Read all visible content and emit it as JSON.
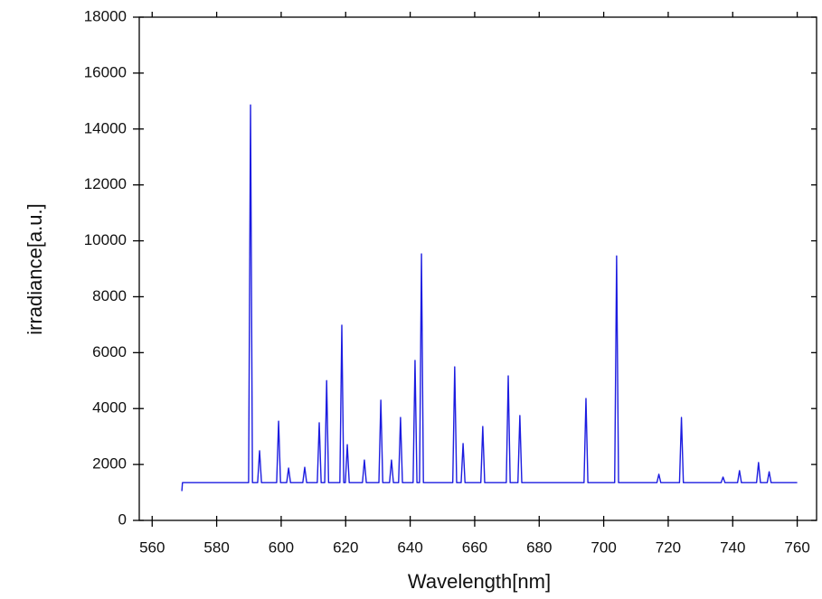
{
  "chart_data": {
    "type": "line",
    "xlabel": "Wavelength[nm]",
    "ylabel": "irradiance[a.u.]",
    "x": [
      569.2,
      569.4,
      589.9,
      590.5,
      591.1,
      592.7,
      593.3,
      593.9,
      598.6,
      599.2,
      599.8,
      601.7,
      602.3,
      602.9,
      606.7,
      607.3,
      607.9,
      611.2,
      611.8,
      612.4,
      613.5,
      614.1,
      614.7,
      618.2,
      618.8,
      619.4,
      619.9,
      620.5,
      621.1,
      625.2,
      625.8,
      626.4,
      630.3,
      630.9,
      631.5,
      633.6,
      634.2,
      634.8,
      636.4,
      637,
      637.6,
      640.9,
      641.5,
      642.1,
      642.9,
      643.5,
      644.1,
      653.2,
      653.8,
      654.4,
      655.8,
      656.4,
      657,
      661.9,
      662.5,
      663.1,
      669.8,
      670.4,
      671,
      673.4,
      674,
      674.6,
      693.9,
      694.5,
      695.1,
      703.4,
      704,
      704.6,
      716.5,
      717.1,
      717.7,
      723.5,
      724.1,
      724.7,
      736.4,
      737,
      737.6,
      741.5,
      742.1,
      742.7,
      747.4,
      748,
      748.6,
      750.7,
      751.3,
      751.9,
      760
    ],
    "values": [
      1050,
      1350,
      1350,
      14860,
      1350,
      1350,
      2490,
      1350,
      1350,
      3550,
      1350,
      1350,
      1870,
      1350,
      1350,
      1900,
      1350,
      1350,
      3490,
      1350,
      1350,
      5000,
      1350,
      1350,
      6980,
      1350,
      1350,
      2710,
      1350,
      1350,
      2160,
      1350,
      1350,
      4300,
      1350,
      1350,
      2160,
      1350,
      1350,
      3680,
      1350,
      1350,
      5720,
      1350,
      1350,
      9530,
      1350,
      1350,
      5490,
      1350,
      1350,
      2750,
      1350,
      1350,
      3360,
      1350,
      1350,
      5170,
      1350,
      1350,
      3750,
      1350,
      1350,
      4360,
      1350,
      1350,
      9460,
      1350,
      1350,
      1650,
      1350,
      1350,
      3680,
      1350,
      1350,
      1550,
      1350,
      1350,
      1780,
      1350,
      1350,
      2070,
      1350,
      1350,
      1740,
      1350,
      1350
    ],
    "color": "#1c1ce0",
    "xlim": [
      556,
      766
    ],
    "ylim": [
      0,
      18000
    ],
    "xticks": [
      560,
      580,
      600,
      620,
      640,
      660,
      680,
      700,
      720,
      740,
      760
    ],
    "yticks": [
      0,
      2000,
      4000,
      6000,
      8000,
      10000,
      12000,
      14000,
      16000,
      18000
    ]
  }
}
